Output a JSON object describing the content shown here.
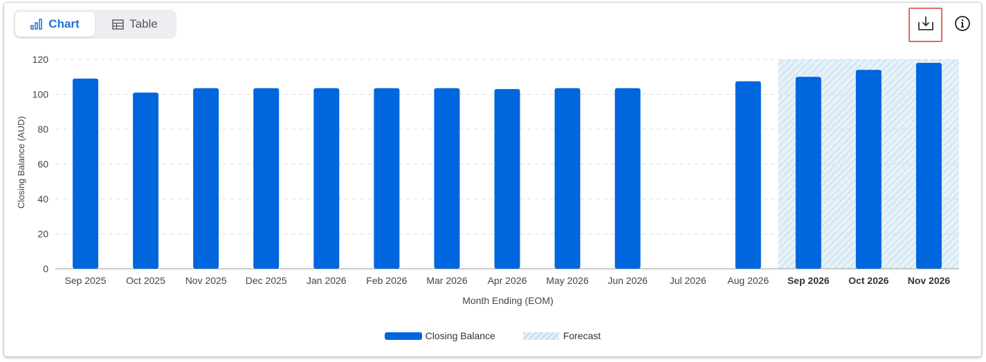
{
  "toolbar": {
    "chart_tab_label": "Chart",
    "table_tab_label": "Table",
    "download_icon": "download-icon",
    "info_icon": "info-icon"
  },
  "colors": {
    "accent": "#1f6fd6",
    "bar": "#0066dd",
    "forecast_fill": "#e6f1f9",
    "highlight_border": "#e26b60"
  },
  "chart_data": {
    "type": "bar",
    "categories": [
      "Sep 2025",
      "Oct 2025",
      "Nov 2025",
      "Dec 2025",
      "Jan 2026",
      "Feb 2026",
      "Mar 2026",
      "Apr 2026",
      "May 2026",
      "Jun 2026",
      "Jul 2026",
      "Aug 2026",
      "Sep 2026",
      "Oct 2026",
      "Nov 2026"
    ],
    "series": [
      {
        "name": "Closing Balance",
        "values": [
          109,
          101,
          103.5,
          103.5,
          103.5,
          103.5,
          103.5,
          103,
          103.5,
          103.5,
          null,
          107.5,
          110,
          114,
          118
        ]
      }
    ],
    "forecast_categories": [
      "Sep 2026",
      "Oct 2026",
      "Nov 2026"
    ],
    "forecast_label": "Forecast",
    "xlabel": "Month Ending (EOM)",
    "ylabel": "Closing Balance (AUD)",
    "ylim": [
      0,
      120
    ],
    "yticks": [
      0,
      20,
      40,
      60,
      80,
      100,
      120
    ],
    "grid": "horizontal dashed",
    "legend_position": "bottom-center"
  }
}
